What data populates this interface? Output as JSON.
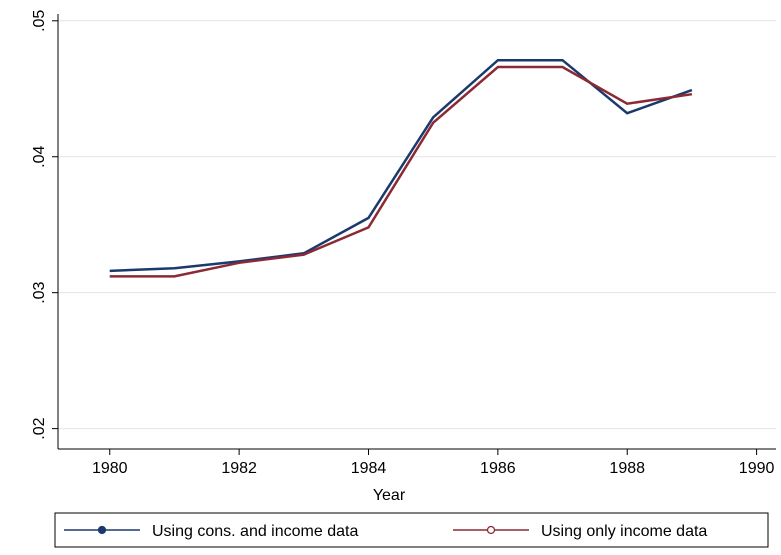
{
  "chart_data": {
    "type": "line",
    "title": "",
    "xlabel": "Year",
    "ylabel": "",
    "xlim": [
      1979.2,
      1990.3
    ],
    "ylim": [
      0.0185,
      0.0505
    ],
    "x_ticks": [
      1980,
      1982,
      1984,
      1986,
      1988,
      1990
    ],
    "x_tick_labels": [
      "1980",
      "1982",
      "1984",
      "1986",
      "1988",
      "1990"
    ],
    "y_ticks": [
      0.02,
      0.03,
      0.04,
      0.05
    ],
    "y_tick_labels": [
      ".02",
      ".03",
      ".04",
      ".05"
    ],
    "grid": "horizontal",
    "legend_position": "bottom",
    "series": [
      {
        "name": "Using cons. and income data",
        "color": "#1a3a6e",
        "x": [
          1980,
          1981,
          1982,
          1983,
          1984,
          1985,
          1986,
          1987,
          1988,
          1989
        ],
        "y": [
          0.0316,
          0.0318,
          0.0323,
          0.0329,
          0.0355,
          0.0429,
          0.0471,
          0.0471,
          0.0432,
          0.0449
        ]
      },
      {
        "name": "Using only income data",
        "color": "#8b2a35",
        "x": [
          1980,
          1981,
          1982,
          1983,
          1984,
          1985,
          1986,
          1987,
          1988,
          1989
        ],
        "y": [
          0.0312,
          0.0312,
          0.0322,
          0.0328,
          0.0348,
          0.0425,
          0.0466,
          0.0466,
          0.0439,
          0.0446
        ]
      }
    ]
  }
}
